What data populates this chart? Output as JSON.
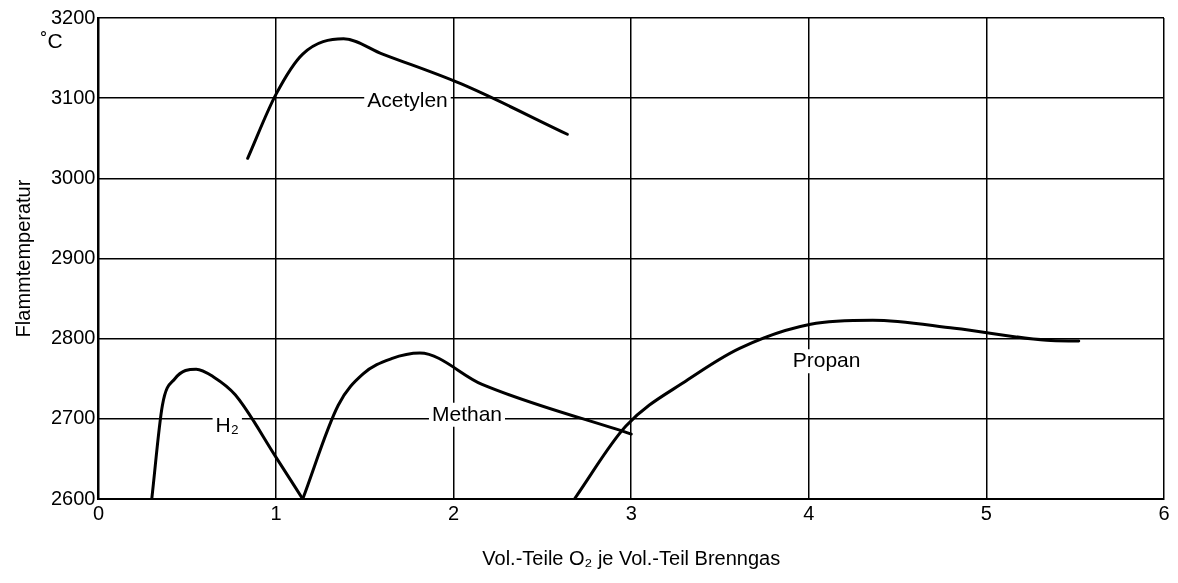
{
  "chart_data": {
    "type": "line",
    "xlabel": "Vol.-Teile O₂ je Vol.-Teil Brenngas",
    "ylabel": "Flammtemperatur",
    "annotations": [
      "˚C"
    ],
    "xlim": [
      0,
      6
    ],
    "xticks": [
      0,
      1,
      2,
      3,
      4,
      5,
      6
    ],
    "ylim": [
      2600,
      3200
    ],
    "yticks": [
      2600,
      2700,
      2800,
      2900,
      3000,
      3100,
      3200
    ],
    "grid": true,
    "legend": false,
    "marker": "none",
    "line_style": "solid",
    "series": [
      {
        "name": "Acetylen",
        "color": "#000000",
        "x": [
          0.84,
          1.0,
          1.15,
          1.38,
          1.6,
          2.04,
          2.64
        ],
        "values": [
          3025,
          3105,
          3155,
          3174,
          3155,
          3118,
          3055
        ]
      },
      {
        "name": "H₂",
        "color": "#000000",
        "x": [
          0.3,
          0.36,
          0.43,
          0.55,
          0.65,
          0.77,
          1.0,
          1.15
        ],
        "values": [
          2600,
          2717,
          2750,
          2762,
          2752,
          2730,
          2652,
          2600
        ]
      },
      {
        "name": "Methan",
        "color": "#000000",
        "x": [
          1.15,
          1.35,
          1.49,
          1.65,
          1.81,
          2.16,
          3.0
        ],
        "values": [
          2600,
          2717,
          2756,
          2775,
          2782,
          2743,
          2681
        ]
      },
      {
        "name": "Propan",
        "color": "#000000",
        "x": [
          2.68,
          2.97,
          3.32,
          3.61,
          4.01,
          4.36,
          4.82,
          5.34,
          5.52
        ],
        "values": [
          2600,
          2691,
          2749,
          2788,
          2818,
          2823,
          2813,
          2798,
          2797
        ]
      }
    ]
  }
}
